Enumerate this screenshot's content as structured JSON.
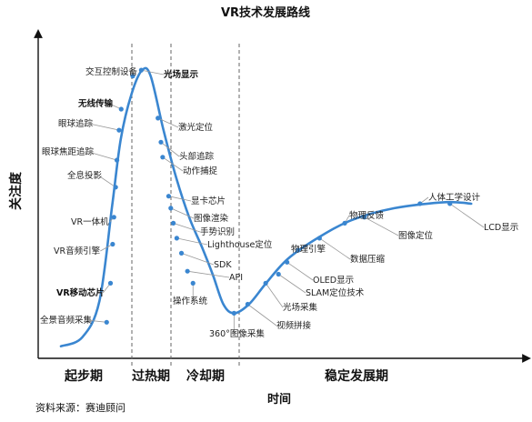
{
  "chart_data": {
    "type": "line",
    "title": "VR技术发展路线",
    "xlabel": "时间",
    "ylabel": "关注度",
    "source": "资料来源：赛迪顾问",
    "phases": [
      "起步期",
      "过热期",
      "冷却期",
      "稳定发展期"
    ],
    "grid": false,
    "curve": [
      [
        0,
        1
      ],
      [
        5,
        4
      ],
      [
        9,
        16
      ],
      [
        12,
        48
      ],
      [
        14,
        70
      ],
      [
        16.5,
        85
      ],
      [
        19,
        93
      ],
      [
        21,
        91
      ],
      [
        24,
        73
      ],
      [
        27,
        57
      ],
      [
        30,
        44
      ],
      [
        33,
        34
      ],
      [
        35.5,
        25
      ],
      [
        38,
        15
      ],
      [
        40.5,
        12
      ],
      [
        44,
        15
      ],
      [
        48,
        22
      ],
      [
        53,
        30
      ],
      [
        60,
        37
      ],
      [
        68,
        43
      ],
      [
        78,
        47
      ],
      [
        90,
        49
      ],
      [
        96,
        48.5
      ]
    ],
    "points": [
      {
        "label": "全景音频采集",
        "x": 10.7,
        "y": 9,
        "bold": false
      },
      {
        "label": "VR移动芯片",
        "x": 11.6,
        "y": 22,
        "bold": true
      },
      {
        "label": "VR音频引擎",
        "x": 12.1,
        "y": 35,
        "bold": false
      },
      {
        "label": "VR一体机",
        "x": 12.4,
        "y": 44,
        "bold": false
      },
      {
        "label": "全息投影",
        "x": 12.8,
        "y": 54,
        "bold": false
      },
      {
        "label": "眼球焦距追踪",
        "x": 13.1,
        "y": 63,
        "bold": false
      },
      {
        "label": "眼球追踪",
        "x": 13.6,
        "y": 73,
        "bold": false
      },
      {
        "label": "无线传输",
        "x": 14.1,
        "y": 80,
        "bold": true
      },
      {
        "label": "交互控制设备",
        "x": 16.8,
        "y": 91,
        "bold": false
      },
      {
        "label": "光场显示",
        "x": 18.8,
        "y": 93,
        "bold": true
      },
      {
        "label": "激光定位",
        "x": 22.7,
        "y": 77,
        "bold": false
      },
      {
        "label": "头部追踪",
        "x": 23.4,
        "y": 69,
        "bold": false
      },
      {
        "label": "动作捕捉",
        "x": 23.8,
        "y": 64,
        "bold": false
      },
      {
        "label": "显卡芯片",
        "x": 25.2,
        "y": 51,
        "bold": false
      },
      {
        "label": "图像渲染",
        "x": 25.7,
        "y": 47,
        "bold": false
      },
      {
        "label": "手势识别",
        "x": 26.3,
        "y": 42,
        "bold": false
      },
      {
        "label": "Lighthouse定位",
        "x": 27.1,
        "y": 37,
        "bold": false
      },
      {
        "label": "SDK",
        "x": 28.2,
        "y": 32,
        "bold": false
      },
      {
        "label": "API",
        "x": 29.6,
        "y": 26,
        "bold": false
      },
      {
        "label": "操作系统",
        "x": 30.9,
        "y": 22,
        "bold": false
      },
      {
        "label": "360°图像采集",
        "x": 40.5,
        "y": 12,
        "bold": false
      },
      {
        "label": "视频拼接",
        "x": 43.7,
        "y": 15,
        "bold": false
      },
      {
        "label": "光场采集",
        "x": 47.9,
        "y": 22,
        "bold": false
      },
      {
        "label": "SLAM定位技术",
        "x": 50.9,
        "y": 25,
        "bold": false
      },
      {
        "label": "OLED显示",
        "x": 52.9,
        "y": 29,
        "bold": false
      },
      {
        "label": "物理引擎",
        "x": 55.5,
        "y": 33,
        "bold": false
      },
      {
        "label": "数据压缩",
        "x": 60.5,
        "y": 37,
        "bold": false
      },
      {
        "label": "物理反馈",
        "x": 66.4,
        "y": 42,
        "bold": false
      },
      {
        "label": "图像定位",
        "x": 71.0,
        "y": 44,
        "bold": false
      },
      {
        "label": "人体工学设计",
        "x": 84.0,
        "y": 48.5,
        "bold": false
      },
      {
        "label": "LCD显示",
        "x": 91.0,
        "y": 48.5,
        "bold": false
      }
    ]
  }
}
